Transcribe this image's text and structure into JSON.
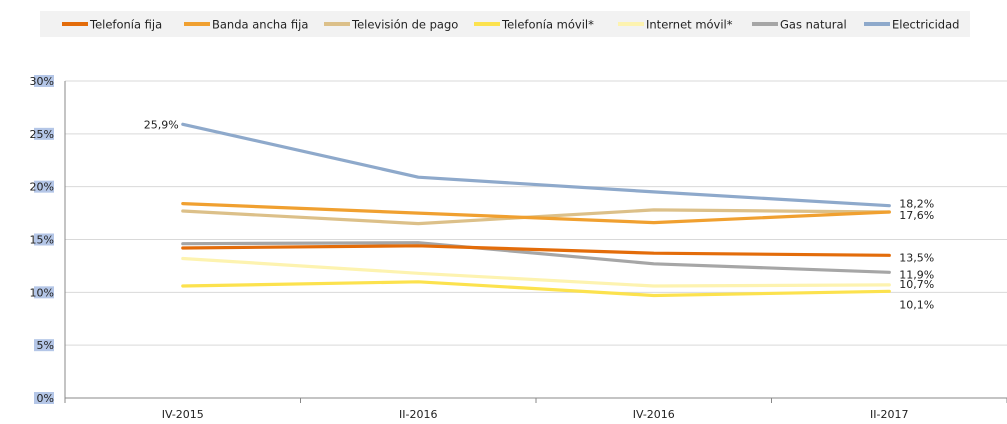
{
  "chart_data": {
    "type": "line",
    "categories": [
      "IV-2015",
      "II-2016",
      "IV-2016",
      "II-2017"
    ],
    "ylim": [
      0,
      30
    ],
    "yticks": [
      0,
      5,
      10,
      15,
      20,
      25,
      30
    ],
    "ytick_labels": [
      "0%",
      "5%",
      "10%",
      "15%",
      "20%",
      "25%",
      "30%"
    ],
    "legend_position": "top",
    "grid": true,
    "series": [
      {
        "name": "Telefonía fija",
        "color": "#e36c0a",
        "values": [
          14.2,
          14.4,
          13.7,
          13.5
        ]
      },
      {
        "name": "Banda ancha fija",
        "color": "#f0a030",
        "values": [
          18.4,
          17.5,
          16.6,
          17.6
        ]
      },
      {
        "name": "Televisión de pago",
        "color": "#dcc089",
        "values": [
          17.7,
          16.5,
          17.8,
          17.6
        ]
      },
      {
        "name": "Telefonía móvil*",
        "color": "#fce24e",
        "values": [
          10.6,
          11.0,
          9.7,
          10.1
        ]
      },
      {
        "name": "Internet móvil*",
        "color": "#fdf3b0",
        "values": [
          13.2,
          11.8,
          10.6,
          10.7
        ]
      },
      {
        "name": "Gas natural",
        "color": "#a6a6a6",
        "values": [
          14.6,
          14.7,
          12.7,
          11.9
        ]
      },
      {
        "name": "Electricidad",
        "color": "#8ea9cb",
        "values": [
          25.9,
          20.9,
          19.5,
          18.2
        ]
      }
    ],
    "data_labels": [
      {
        "series": "Electricidad",
        "index": 0,
        "text": "25,9%",
        "side": "left"
      },
      {
        "series": "Electricidad",
        "index": 3,
        "text": "18,2%",
        "side": "right"
      },
      {
        "series": "Banda ancha fija",
        "index": 3,
        "text": "17,6%",
        "side": "right"
      },
      {
        "series": "Telefonía fija",
        "index": 3,
        "text": "13,5%",
        "side": "right"
      },
      {
        "series": "Gas natural",
        "index": 3,
        "text": "11,9%",
        "side": "right"
      },
      {
        "series": "Internet móvil*",
        "index": 3,
        "text": "10,7%",
        "side": "right"
      },
      {
        "series": "Telefonía móvil*",
        "index": 3,
        "text": "10,1%",
        "side": "below-right"
      }
    ]
  }
}
